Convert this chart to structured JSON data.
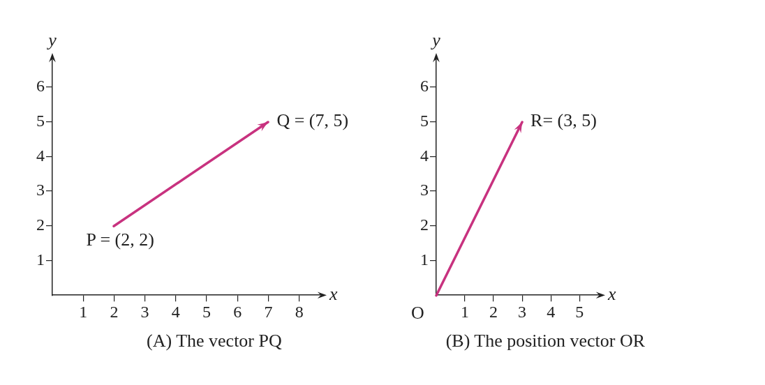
{
  "chart_data": [
    {
      "type": "line",
      "title": "(A) The vector PQ⃗",
      "xlabel": "x",
      "ylabel": "y",
      "xlim": [
        0,
        8.8
      ],
      "ylim": [
        0,
        6.9
      ],
      "xticks": [
        1,
        2,
        3,
        4,
        5,
        6,
        7,
        8
      ],
      "yticks": [
        1,
        2,
        3,
        4,
        5,
        6
      ],
      "grid": false,
      "legend": false,
      "series": [
        {
          "color": "#c8327f",
          "x": [
            2,
            7
          ],
          "values": [
            2,
            5
          ]
        }
      ],
      "annotations": [
        {
          "text": "P = (2, 2)",
          "x": 2,
          "y": 2
        },
        {
          "text": "Q = (7, 5)",
          "x": 7,
          "y": 5
        }
      ]
    },
    {
      "type": "line",
      "title": "(B) The position vector OR⃗",
      "xlabel": "x",
      "ylabel": "y",
      "xlim": [
        0,
        5.8
      ],
      "ylim": [
        0,
        6.9
      ],
      "xticks": [
        1,
        2,
        3,
        4,
        5
      ],
      "yticks": [
        1,
        2,
        3,
        4,
        5,
        6
      ],
      "grid": false,
      "legend": false,
      "series": [
        {
          "color": "#c8327f",
          "x": [
            0,
            3
          ],
          "values": [
            0,
            5
          ]
        }
      ],
      "annotations": [
        {
          "text": "O",
          "x": 0,
          "y": 0
        },
        {
          "text": "R= (3, 5)",
          "x": 3,
          "y": 5
        }
      ]
    }
  ]
}
